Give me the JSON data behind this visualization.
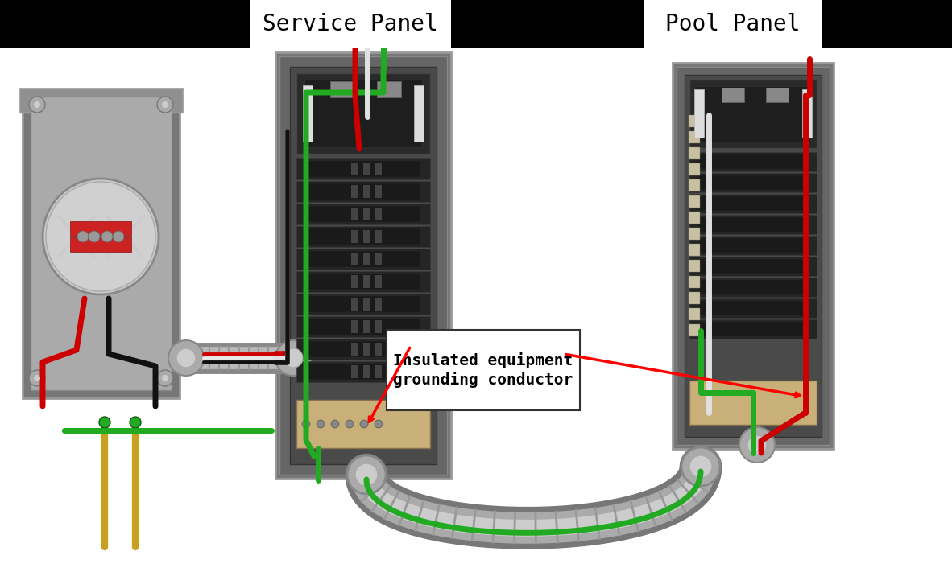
{
  "bg_color": "#ffffff",
  "header_color": "#000000",
  "service_panel_label": "Service Panel",
  "pool_panel_label": "Pool Panel",
  "label_fontsize": 20,
  "annotation_text": "Insulated equipment\ngrounding conductor",
  "annotation_fontsize": 14,
  "wire_green": "#22aa22",
  "wire_red": "#cc0000",
  "wire_white": "#e8e8e8",
  "wire_black": "#111111",
  "wire_lw": 5,
  "conduit_outer": "#888888",
  "conduit_mid": "#aaaaaa",
  "conduit_inner": "#cccccc",
  "conduit_lw_outer": 36,
  "conduit_lw_mid": 26,
  "conduit_lw_inner": 14,
  "panel_outer": "#888888",
  "panel_mid": "#666666",
  "panel_inner": "#555555",
  "panel_dark": "#3a3a3a",
  "panel_breaker": "#252525",
  "meter_gray": "#888888",
  "tan": "#c8b078"
}
